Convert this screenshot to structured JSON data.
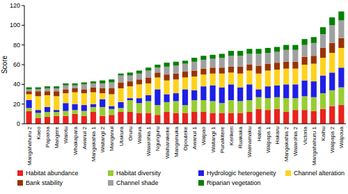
{
  "chart_data": {
    "type": "bar",
    "stacked": true,
    "grid": false,
    "legend": "bottom",
    "y_label": "Score",
    "categories": [
      "Mangahahuru 2",
      "Kaeo",
      "Paparoa",
      "Mangere",
      "Waiotu",
      "Whakapara",
      "Awanui 2",
      "Mangakahia 1",
      "Waitangi 2",
      "Manganui",
      "Utakura",
      "Oruru",
      "Wairua",
      "Waiarohia 1",
      "Ngunguru",
      "Waiharakeke",
      "Mangamuka",
      "Opouteke",
      "Awanui 1",
      "Waipao",
      "Waitangi 1",
      "Punakitere",
      "Kerikeri",
      "Ruakaka",
      "Waimamaku",
      "Hatea",
      "Waipapa 1",
      "Hakaru",
      "Mangakahia 2",
      "Waiarohia 2",
      "Victoria",
      "Mangahahuru 1",
      "Kaihu",
      "Waipapa 2",
      "Waipoua"
    ],
    "ylim": [
      0,
      120
    ],
    "yticks": [
      0,
      20,
      40,
      60,
      80,
      100,
      120
    ],
    "series": [
      {
        "name": "Habitat abundance",
        "color": "#e8231e",
        "values": [
          13,
          6,
          7,
          8,
          8,
          10,
          8,
          12,
          8,
          9,
          12,
          12,
          11,
          11,
          9,
          12,
          11,
          11,
          12,
          12,
          11,
          11,
          11,
          11,
          12,
          15,
          14,
          15,
          12,
          14,
          14,
          13,
          15,
          18,
          19
        ]
      },
      {
        "name": "Habitat diversity",
        "color": "#99cc33",
        "values": [
          3,
          5,
          5,
          4,
          5,
          4,
          5,
          5,
          9,
          6,
          4,
          12,
          10,
          12,
          10,
          10,
          12,
          8,
          12,
          12,
          12,
          10,
          13,
          12,
          12,
          12,
          12,
          12,
          14,
          12,
          14,
          14,
          16,
          16,
          18
        ]
      },
      {
        "name": "Hydrologic heterogeneity",
        "color": "#1e1ee6",
        "values": [
          8,
          3,
          5,
          2,
          8,
          6,
          6,
          3,
          8,
          3,
          6,
          2,
          5,
          6,
          16,
          8,
          8,
          16,
          10,
          14,
          16,
          16,
          16,
          14,
          16,
          8,
          12,
          12,
          14,
          14,
          16,
          16,
          18,
          18,
          20
        ]
      },
      {
        "name": "Channel alteration",
        "color": "#ffd21e",
        "values": [
          6,
          14,
          12,
          14,
          10,
          12,
          12,
          12,
          6,
          12,
          14,
          12,
          14,
          12,
          12,
          14,
          14,
          12,
          14,
          12,
          12,
          14,
          12,
          14,
          14,
          16,
          16,
          16,
          16,
          16,
          16,
          18,
          18,
          20,
          20
        ]
      },
      {
        "name": "Bank stability",
        "color": "#993300",
        "values": [
          3,
          5,
          4,
          5,
          4,
          4,
          4,
          5,
          5,
          6,
          6,
          5,
          5,
          6,
          5,
          6,
          6,
          6,
          6,
          6,
          6,
          6,
          6,
          7,
          6,
          8,
          7,
          7,
          7,
          7,
          8,
          8,
          10,
          10,
          10
        ]
      },
      {
        "name": "Channel shade",
        "color": "#a0a0a0",
        "values": [
          2,
          2,
          3,
          3,
          4,
          3,
          5,
          4,
          5,
          6,
          7,
          6,
          6,
          7,
          5,
          8,
          8,
          8,
          9,
          9,
          9,
          10,
          11,
          11,
          11,
          12,
          11,
          11,
          12,
          12,
          12,
          13,
          14,
          18,
          18
        ]
      },
      {
        "name": "Riparian vegetation",
        "color": "#008000",
        "values": [
          2,
          2,
          2,
          2,
          2,
          2,
          2,
          2,
          3,
          3,
          2,
          3,
          3,
          3,
          3,
          4,
          4,
          3,
          4,
          4,
          4,
          4,
          5,
          5,
          5,
          5,
          5,
          5,
          5,
          5,
          6,
          6,
          7,
          8,
          9
        ]
      }
    ]
  }
}
